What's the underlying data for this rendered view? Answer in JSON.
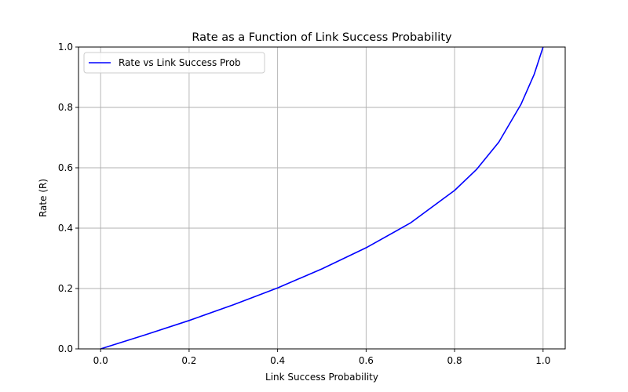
{
  "chart_data": {
    "type": "line",
    "title": "Rate as a Function of Link Success Probability",
    "xlabel": "Link Success Probability",
    "ylabel": "Rate (R)",
    "xlim": [
      -0.05,
      1.05
    ],
    "ylim": [
      0.0,
      1.0
    ],
    "xticks": [
      0.0,
      0.2,
      0.4,
      0.6,
      0.8,
      1.0
    ],
    "xtick_labels": [
      "0.0",
      "0.2",
      "0.4",
      "0.6",
      "0.8",
      "1.0"
    ],
    "yticks": [
      0.0,
      0.2,
      0.4,
      0.6,
      0.8,
      1.0
    ],
    "ytick_labels": [
      "0.0",
      "0.2",
      "0.4",
      "0.6",
      "0.8",
      "1.0"
    ],
    "grid": true,
    "legend": "upper-left",
    "series": [
      {
        "name": "Rate vs Link Success Prob",
        "color": "#0000ff",
        "x": [
          0.0,
          0.1,
          0.2,
          0.3,
          0.4,
          0.5,
          0.6,
          0.7,
          0.8,
          0.85,
          0.9,
          0.95,
          0.98,
          1.0
        ],
        "y": [
          0.0,
          0.046,
          0.094,
          0.146,
          0.202,
          0.265,
          0.335,
          0.417,
          0.525,
          0.595,
          0.685,
          0.81,
          0.91,
          1.0
        ]
      }
    ]
  }
}
